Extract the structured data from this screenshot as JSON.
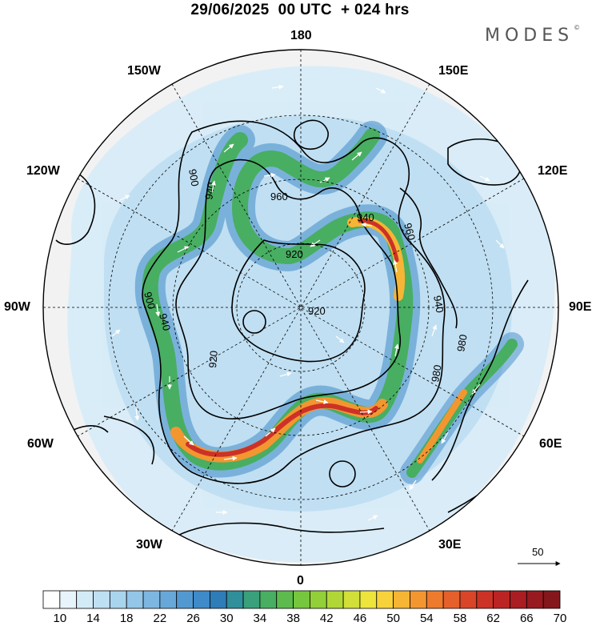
{
  "header": {
    "title": "29/06/2025  00 UTC  + 024 hrs",
    "brand": "MODES",
    "brand_mark": "©"
  },
  "longitude_labels": {
    "top": "180",
    "bottom": "0",
    "left": "90W",
    "right": "90E",
    "w150": "150W",
    "e150": "150E",
    "w120": "120W",
    "e120": "120E",
    "w60": "60W",
    "e60": "60E",
    "w30": "30W",
    "e30": "30E"
  },
  "contour_labels": [
    "900",
    "940",
    "960",
    "940",
    "960",
    "920",
    "900",
    "940",
    "920",
    "920",
    "940",
    "980",
    "980"
  ],
  "wind_scale": {
    "value": "50"
  },
  "colorbar": {
    "levels": [
      8,
      10,
      12,
      14,
      16,
      18,
      20,
      22,
      24,
      26,
      28,
      30,
      32,
      34,
      36,
      38,
      40,
      42,
      44,
      46,
      48,
      50,
      52,
      54,
      56,
      58,
      60,
      62,
      64,
      66,
      68,
      70
    ],
    "labels": [
      "10",
      "14",
      "18",
      "22",
      "26",
      "30",
      "34",
      "38",
      "42",
      "46",
      "50",
      "54",
      "58",
      "62",
      "66",
      "70"
    ],
    "colors": [
      "#ffffff",
      "#e8f4fb",
      "#d3ebf7",
      "#bfe0f3",
      "#a9d4ee",
      "#93c6e8",
      "#7db7e1",
      "#68a8d9",
      "#5399d1",
      "#3f8ac8",
      "#2e7cb8",
      "#2f8f9a",
      "#3aa07c",
      "#48ae62",
      "#5cbb4c",
      "#76c63e",
      "#92cf38",
      "#b1d736",
      "#d1df38",
      "#ede43c",
      "#f8d23a",
      "#f6b534",
      "#f39630",
      "#ee7a2d",
      "#e5602b",
      "#d94528",
      "#cc3226",
      "#bc2424",
      "#aa1d22",
      "#981920",
      "#85161c"
    ]
  }
}
